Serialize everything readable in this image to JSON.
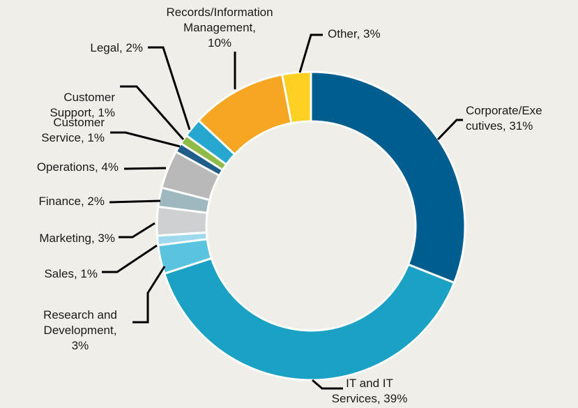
{
  "chart_data": {
    "type": "donut",
    "values": [
      31,
      39,
      3,
      1,
      3,
      2,
      4,
      1,
      1,
      2,
      10,
      3
    ],
    "value_labels": [
      "Corporate/Exe\ncutives, 31%",
      "IT and IT\nServices, 39%",
      "Research and\nDevelopment,\n3%",
      "Sales, 1%",
      "Marketing, 3%",
      "Finance, 2%",
      "Operations, 4%",
      "Customer\nService, 1%",
      "Customer\nSupport, 1%",
      "Legal, 2%",
      "Records/Information\nManagement,\n10%",
      "Other, 3%"
    ],
    "colors": [
      "#005e8e",
      "#1aa1c3",
      "#5ac4df",
      "#9fd9ee",
      "#cfd0d2",
      "#9db8bf",
      "#b9b9b9",
      "#1e5e88",
      "#8fbb48",
      "#25a7cf",
      "#f6a623",
      "#fdd022"
    ]
  }
}
